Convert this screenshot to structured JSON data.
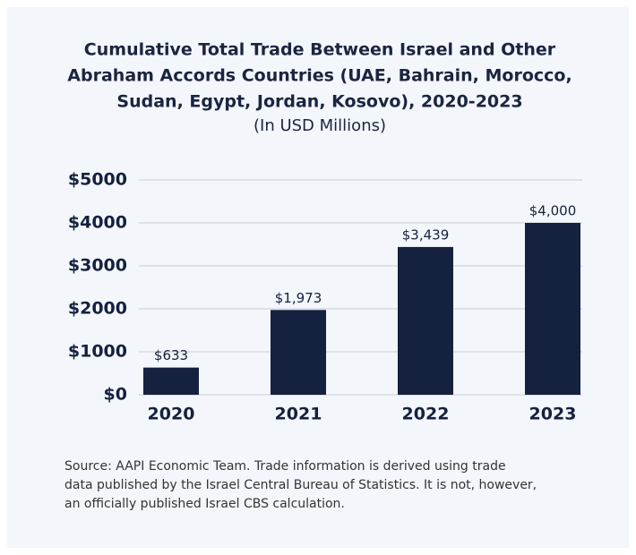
{
  "chart_data": {
    "type": "bar",
    "title": [
      "Cumulative Total Trade Between Israel and Other",
      "Abraham Accords Countries (UAE, Bahrain, Morocco,",
      "Sudan, Egypt, Jordan, Kosovo), 2020-2023"
    ],
    "subtitle": "(In USD Millions)",
    "categories": [
      "2020",
      "2021",
      "2022",
      "2023"
    ],
    "values": [
      633,
      1973,
      3439,
      4000
    ],
    "value_labels": [
      "$633",
      "$1,973",
      "$3,439",
      "$4,000"
    ],
    "color": "#14213f",
    "ylim": [
      0,
      5000
    ],
    "yticks": [
      {
        "value": 0,
        "label": "$0"
      },
      {
        "value": 1000,
        "label": "$1000"
      },
      {
        "value": 2000,
        "label": "$2000"
      },
      {
        "value": 3000,
        "label": "$3000"
      },
      {
        "value": 4000,
        "label": "$4000"
      },
      {
        "value": 5000,
        "label": "$5000"
      }
    ],
    "grid": true,
    "source": [
      "Source: AAPI Economic Team. Trade information is derived using trade",
      "data published by the Israel Central Bureau of Statistics. It is not, however,",
      "an officially published Israel CBS calculation."
    ]
  }
}
